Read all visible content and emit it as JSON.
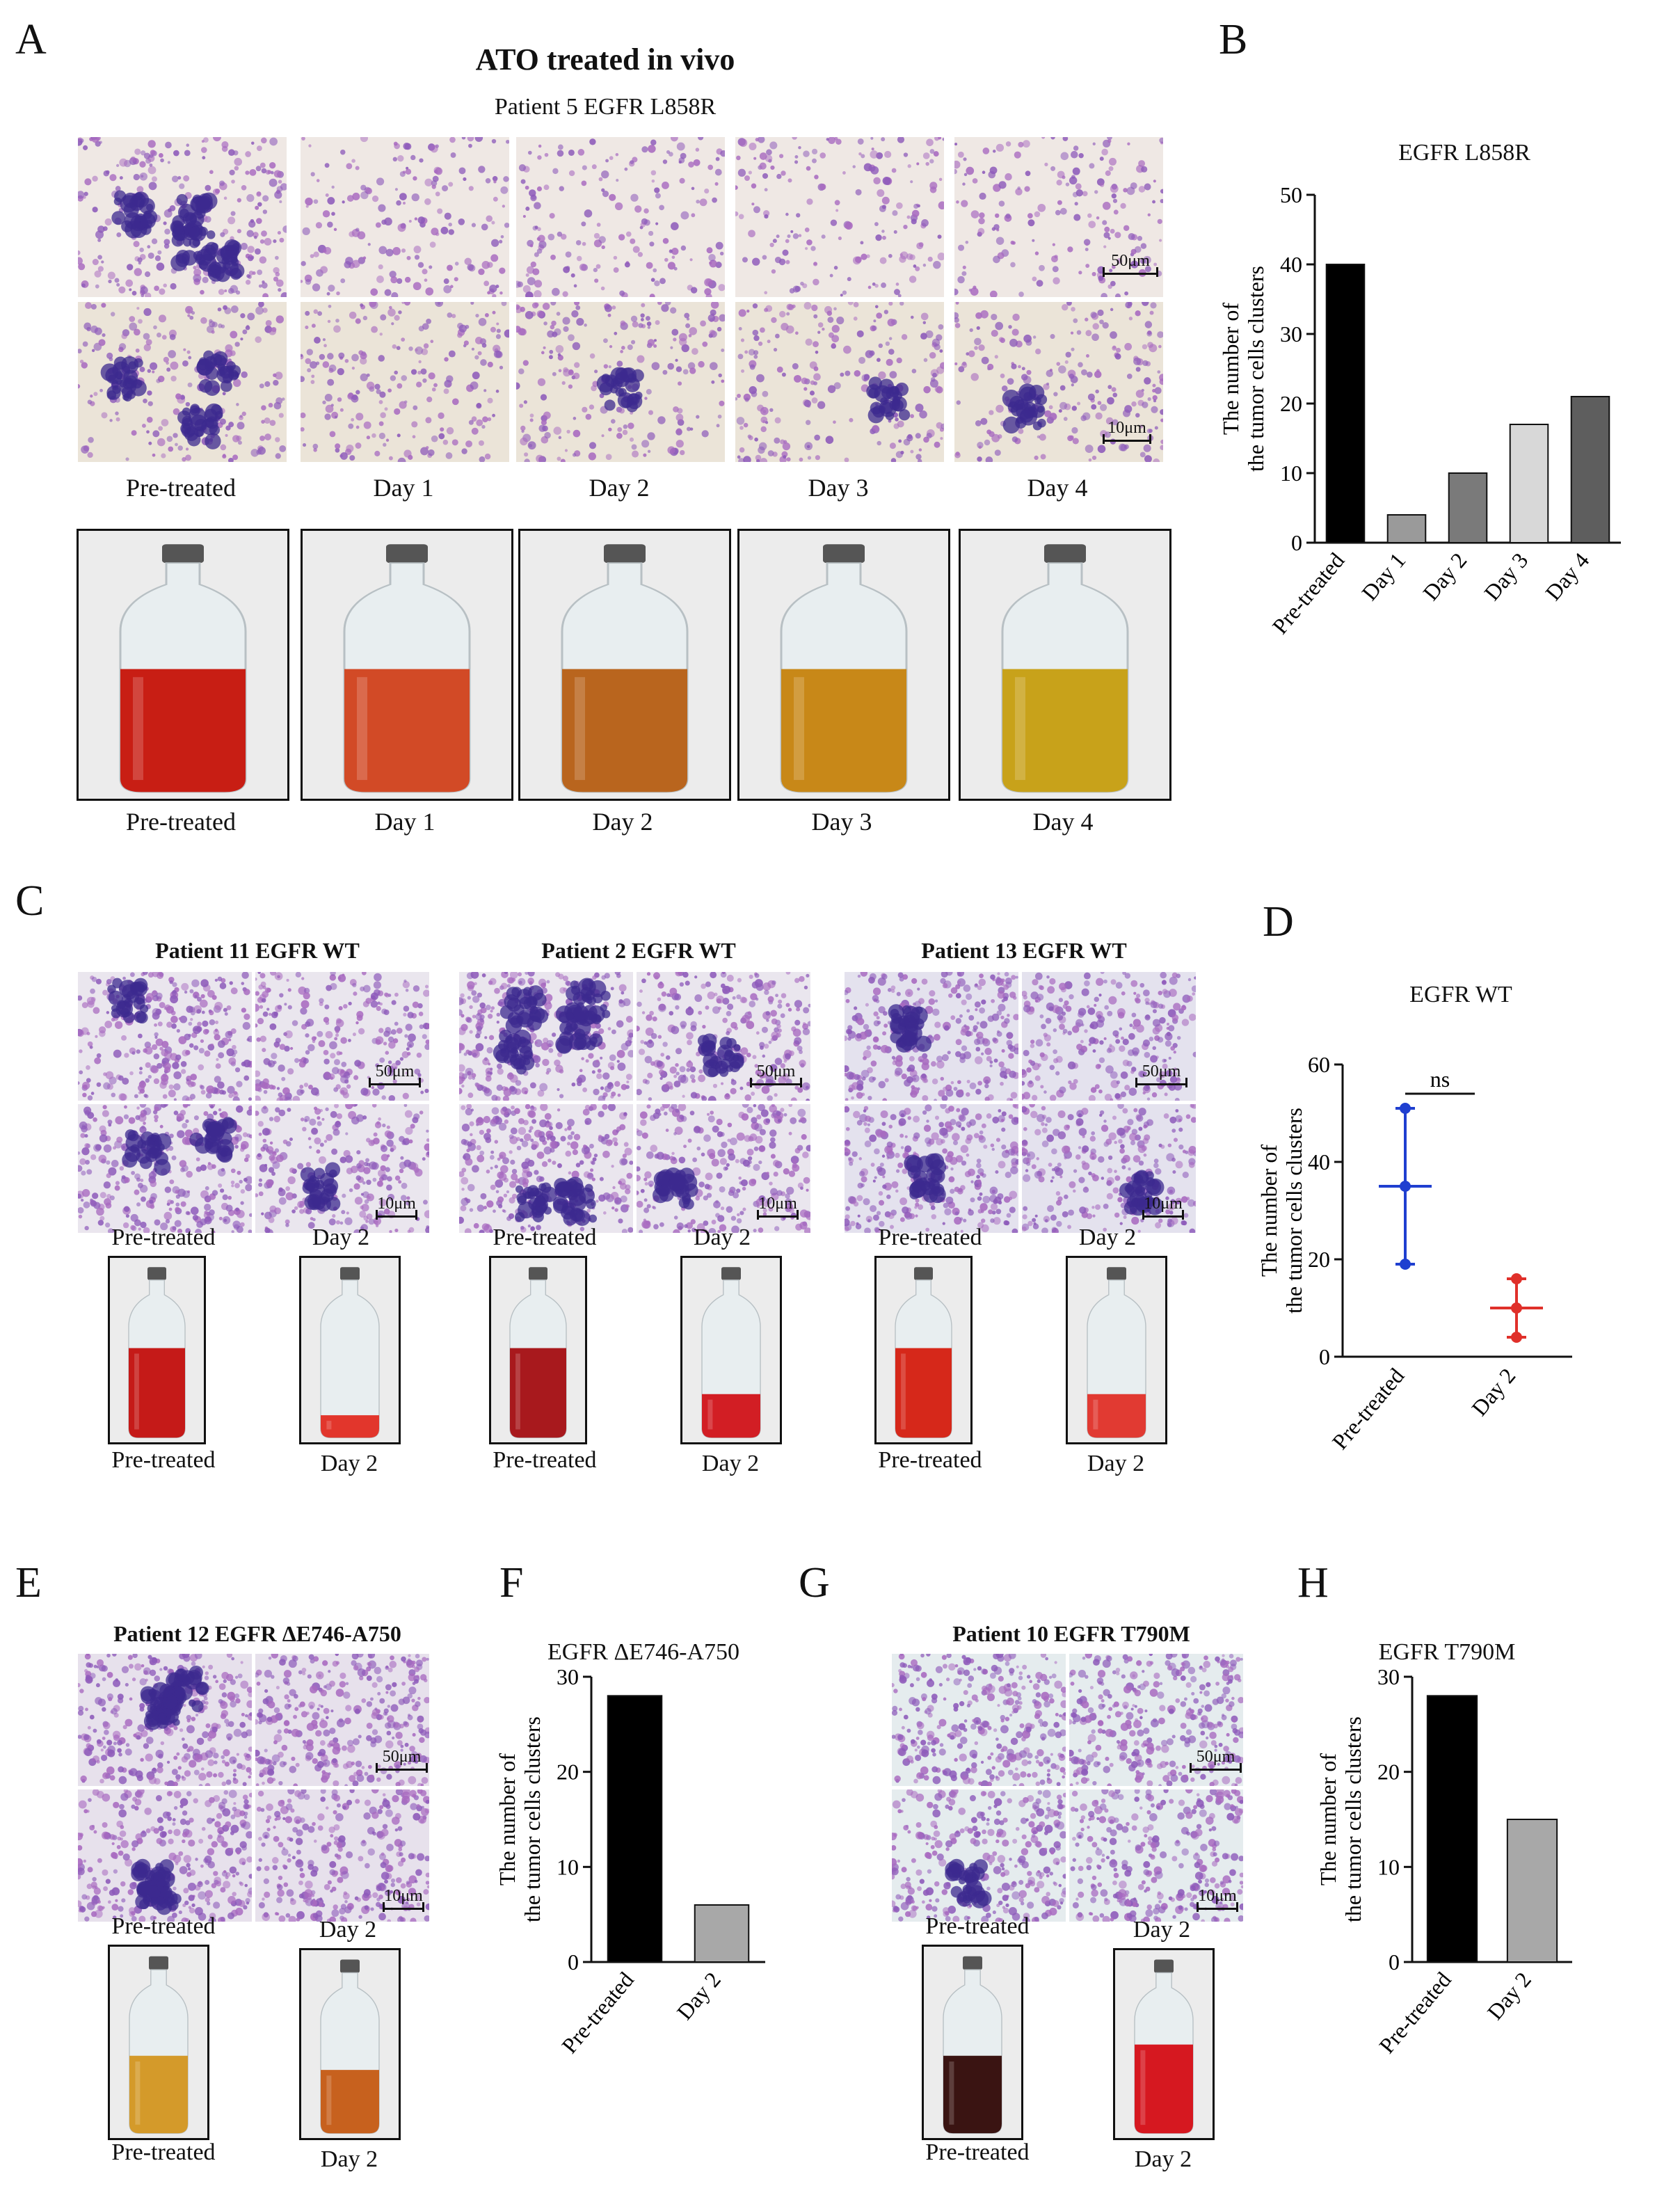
{
  "panels": {
    "A": "A",
    "B": "B",
    "C": "C",
    "D": "D",
    "E": "E",
    "F": "F",
    "G": "G",
    "H": "H"
  },
  "panelA": {
    "title": "ATO treated in vivo",
    "subtitle": "Patient 5  EGFR  L858R",
    "columns": [
      "Pre-treated",
      "Day 1",
      "Day 2",
      "Day 3",
      "Day 4"
    ],
    "scale_top": "50μm",
    "scale_bottom": "10μm",
    "bottle_labels": [
      "Pre-treated",
      "Day 1",
      "Day 2",
      "Day 3",
      "Day 4"
    ],
    "bottle_colors": [
      "#c81e14",
      "#d24a26",
      "#b9651e",
      "#c88818",
      "#c8a21a"
    ]
  },
  "panelC": {
    "groups": [
      {
        "title": "Patient 11  EGFR  WT",
        "labels": [
          "Pre-treated",
          "Day 2"
        ],
        "bottle_labels": [
          "Pre-treated",
          "Day 2"
        ],
        "scale_top": "50μm",
        "scale_bottom": "10μm"
      },
      {
        "title": "Patient 2 EGFR  WT",
        "labels": [
          "Pre-treated",
          "Day 2"
        ],
        "bottle_labels": [
          "Pre-treated",
          "Day 2"
        ],
        "scale_top": "50μm",
        "scale_bottom": "10μm"
      },
      {
        "title": "Patient 13  EGFR  WT",
        "labels": [
          "Pre-treated",
          "Day 2"
        ],
        "bottle_labels": [
          "Pre-treated",
          "Day 2"
        ],
        "scale_top": "50μm",
        "scale_bottom": "10μm"
      }
    ]
  },
  "panelE": {
    "title": "Patient 12  EGFR  ΔE746-A750",
    "labels": [
      "Pre-treated",
      "Day 2"
    ],
    "bottle_labels": [
      "Pre-treated",
      "Day 2"
    ],
    "scale_top": "50μm",
    "scale_bottom": "10μm"
  },
  "panelG": {
    "title": "Patient 10  EGFR  T790M",
    "labels": [
      "Pre-treated",
      "Day 2"
    ],
    "bottle_labels": [
      "Pre-treated",
      "Day 2"
    ],
    "scale_top": "50μm",
    "scale_bottom": "10μm"
  },
  "chart_data": [
    {
      "id": "B",
      "type": "bar",
      "title": "EGFR   L858R",
      "ylabel": "The number of the tumor cells clusters",
      "categories": [
        "Pre-treated",
        "Day 1",
        "Day 2",
        "Day 3",
        "Day 4"
      ],
      "values": [
        40,
        4,
        10,
        17,
        21
      ],
      "ylim": [
        0,
        50
      ],
      "yticks": [
        0,
        10,
        20,
        30,
        40,
        50
      ],
      "colors": [
        "#000000",
        "#9a9a9a",
        "#7a7a7a",
        "#d8d8d8",
        "#5e5e5e"
      ]
    },
    {
      "id": "D",
      "type": "scatter",
      "title": "EGFR   WT",
      "ylabel": "The number of the tumor cells clusters",
      "categories": [
        "Pre-treated",
        "Day 2"
      ],
      "series": [
        {
          "points": [
            51,
            35,
            19
          ],
          "mean": 35,
          "err": [
            19,
            51
          ],
          "color": "#1f3fd0"
        },
        {
          "points": [
            16,
            10,
            4
          ],
          "mean": 10,
          "err": [
            4,
            16
          ],
          "color": "#e0302a"
        }
      ],
      "ylim": [
        0,
        60
      ],
      "yticks": [
        0,
        20,
        40,
        60
      ],
      "annotation": "ns"
    },
    {
      "id": "F",
      "type": "bar",
      "title": "EGFR   ΔE746-A750",
      "ylabel": "The number of the tumor cells clusters",
      "categories": [
        "Pre-treated",
        "Day 2"
      ],
      "values": [
        28,
        6
      ],
      "ylim": [
        0,
        30
      ],
      "yticks": [
        0,
        10,
        20,
        30
      ],
      "colors": [
        "#000000",
        "#a8a8a8"
      ]
    },
    {
      "id": "H",
      "type": "bar",
      "title": "EGFR   T790M",
      "ylabel": "The number of the tumor cells clusters",
      "categories": [
        "Pre-treated",
        "Day 2"
      ],
      "values": [
        28,
        15
      ],
      "ylim": [
        0,
        30
      ],
      "yticks": [
        0,
        10,
        20,
        30
      ],
      "colors": [
        "#000000",
        "#a8a8a8"
      ]
    }
  ]
}
